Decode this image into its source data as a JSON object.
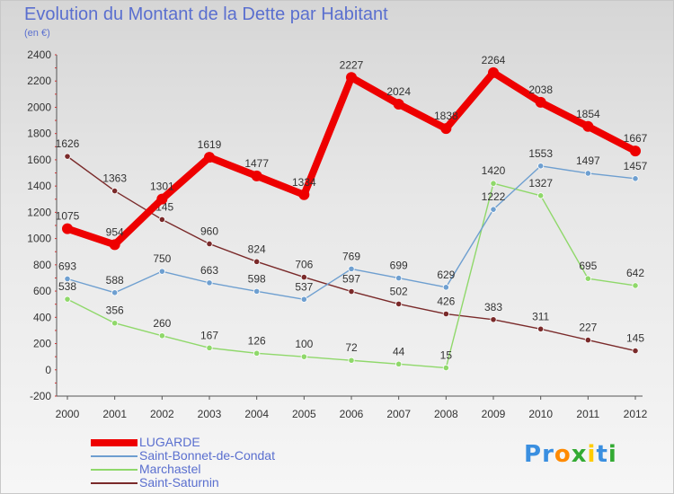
{
  "chart_data": {
    "type": "line",
    "title": "Evolution du Montant de la Dette par Habitant",
    "subtitle": "(en €)",
    "x": [
      "2000",
      "2001",
      "2002",
      "2003",
      "2004",
      "2005",
      "2006",
      "2007",
      "2008",
      "2009",
      "2010",
      "2011",
      "2012"
    ],
    "ylim": [
      -200,
      2400
    ],
    "yticks": [
      -200,
      0,
      200,
      400,
      600,
      800,
      1000,
      1200,
      1400,
      1600,
      1800,
      2000,
      2200,
      2400
    ],
    "grid": false,
    "legend_position": "bottom-left",
    "series": [
      {
        "name": "LUGARDE",
        "color": "#ee0000",
        "values": [
          1075,
          954,
          1301,
          1619,
          1477,
          1334,
          2227,
          2024,
          1838,
          2264,
          2038,
          1854,
          1667
        ]
      },
      {
        "name": "Saint-Bonnet-de-Condat",
        "color": "#6e9fd0",
        "values": [
          693,
          588,
          750,
          663,
          598,
          537,
          769,
          699,
          629,
          1222,
          1553,
          1497,
          1457
        ]
      },
      {
        "name": "Marchastel",
        "color": "#8fd86a",
        "values": [
          538,
          356,
          260,
          167,
          126,
          100,
          72,
          44,
          15,
          1420,
          1327,
          695,
          642
        ]
      },
      {
        "name": "Saint-Saturnin",
        "color": "#7a2a2a",
        "values": [
          1626,
          1363,
          1145,
          960,
          824,
          706,
          597,
          502,
          426,
          383,
          311,
          227,
          145
        ]
      }
    ]
  },
  "logo": {
    "letters": [
      "P",
      "r",
      "o",
      "x",
      "i",
      "t",
      "i"
    ],
    "colors": [
      "#3a8fe0",
      "#3a8fe0",
      "#ff8a00",
      "#33aa33",
      "#ffcc00",
      "#3a8fe0",
      "#33aa33"
    ]
  }
}
